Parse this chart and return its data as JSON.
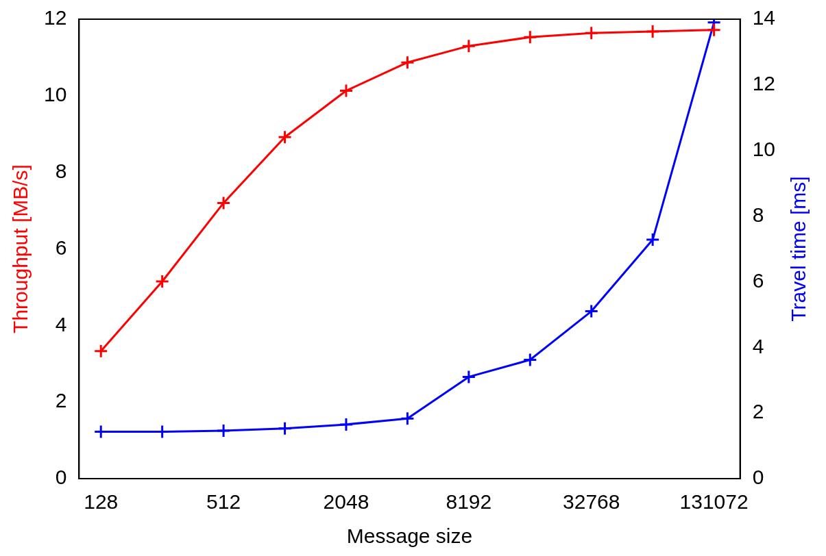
{
  "chart_data": {
    "type": "line",
    "xlabel": "Message size",
    "ylabel": "Throughput [MB/s]",
    "y2label": "Travel time [ms]",
    "x": [
      128,
      256,
      512,
      1024,
      2048,
      4096,
      8192,
      16384,
      32768,
      65536,
      131072
    ],
    "log": "x",
    "xlim": [
      100,
      176000
    ],
    "xticks": [
      128,
      512,
      2048,
      8192,
      32768,
      131072
    ],
    "ylim": [
      0,
      12
    ],
    "yticks": [
      0,
      2,
      4,
      6,
      8,
      10,
      12
    ],
    "y2lim": [
      0,
      14
    ],
    "y2ticks": [
      0,
      2,
      4,
      6,
      8,
      10,
      12,
      14
    ],
    "marker": "cross",
    "line_style": "solid",
    "grid": false,
    "legend": false,
    "series": [
      {
        "color": "#ff0000",
        "axis": "y",
        "values": [
          3.33,
          5.15,
          7.2,
          8.92,
          10.13,
          10.87,
          11.3,
          11.53,
          11.64,
          11.68,
          11.72
        ]
      },
      {
        "color": "#0000ff",
        "axis": "y2",
        "values": [
          1.43,
          1.43,
          1.46,
          1.53,
          1.65,
          1.83,
          3.1,
          3.62,
          5.1,
          7.28,
          13.9
        ]
      }
    ]
  }
}
